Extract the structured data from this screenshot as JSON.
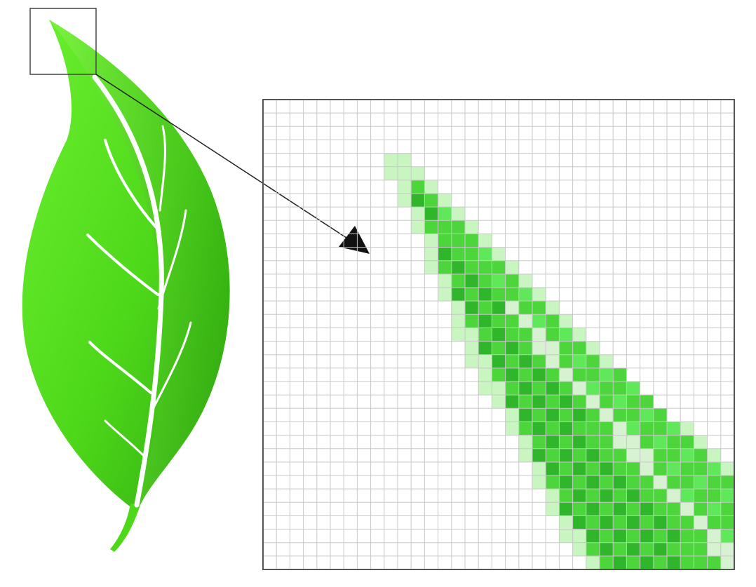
{
  "figure": {
    "leaf": {
      "icon": "leaf-icon",
      "base_color": "#4ed81a",
      "vein_color": "#ffffff"
    },
    "callout": {
      "icon": "arrow-icon",
      "color": "#222222"
    },
    "pixel_grid": {
      "columns": 35,
      "rows": 35,
      "grid_line_color": "#c8c8c8",
      "border_color": "#555555",
      "shades": {
        "light": "#c8f5c0",
        "bright": "#5fe85a",
        "medium": "#4cd63c",
        "dark": "#2fb62a",
        "midrib": "#d6f2d0"
      }
    }
  }
}
